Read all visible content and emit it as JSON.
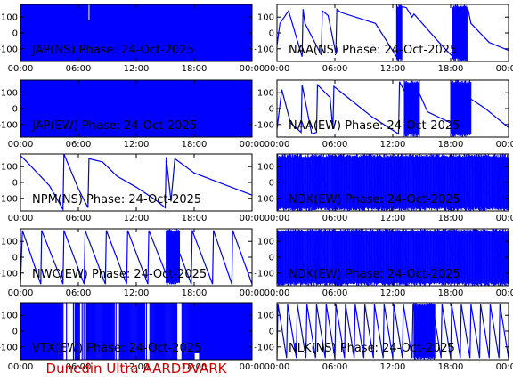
{
  "footer": "Dunedin Ultra AARDDVARK",
  "colors": {
    "trace": "#0000ff",
    "axes": "#000000",
    "footer": "#cc0000",
    "background": "#ffffff"
  },
  "chart_data": [
    {
      "type": "line",
      "title": "JAP(NS) Phase: 24-Oct-2025",
      "xlim": [
        0,
        24
      ],
      "ylim": [
        -180,
        180
      ],
      "xticks": [
        "00:00",
        "06:00",
        "12:00",
        "18:00",
        "00:00"
      ],
      "yticks": [
        100,
        0,
        -100
      ],
      "pattern": "noise",
      "series": [
        {
          "x": [
            0,
            24
          ],
          "y": [
            -180,
            180
          ]
        }
      ]
    },
    {
      "type": "line",
      "title": "NAA(NS) Phase: 24-Oct-2025",
      "xlim": [
        0,
        24
      ],
      "ylim": [
        -180,
        180
      ],
      "xticks": [
        "00:00",
        "06:00",
        "12:00",
        "18:00",
        "00:00"
      ],
      "yticks": [
        100,
        0,
        -100
      ],
      "pattern": "ramps",
      "noise_spans": [
        [
          12.4,
          13.0
        ],
        [
          18.2,
          19.7
        ]
      ],
      "series": [
        {
          "x": [
            0,
            0.3,
            1.2,
            2.6,
            2.7,
            2.9,
            4.6,
            4.7,
            5.3,
            6.1,
            6.2,
            6.6,
            10.2,
            12.6,
            12.7,
            13.4,
            14.0,
            14.2,
            16.8,
            18.2,
            19.8,
            20.1,
            22.0,
            24.0
          ],
          "y": [
            -80,
            60,
            140,
            -150,
            150,
            60,
            -140,
            140,
            110,
            -130,
            150,
            130,
            60,
            -170,
            170,
            160,
            100,
            120,
            -60,
            -150,
            150,
            60,
            -60,
            -110
          ]
        }
      ]
    },
    {
      "type": "line",
      "title": "JAP(EW) Phase: 24-Oct-2025",
      "xlim": [
        0,
        24
      ],
      "ylim": [
        -180,
        180
      ],
      "xticks": [
        "00:00",
        "06:00",
        "12:00",
        "18:00",
        "00:00"
      ],
      "yticks": [
        100,
        0,
        -100
      ],
      "pattern": "noise",
      "series": [
        {
          "x": [
            0,
            24
          ],
          "y": [
            -180,
            180
          ]
        }
      ]
    },
    {
      "type": "line",
      "title": "NAA(EW) Phase: 24-Oct-2025",
      "xlim": [
        0,
        24
      ],
      "ylim": [
        -180,
        180
      ],
      "xticks": [
        "00:00",
        "06:00",
        "12:00",
        "18:00",
        "00:00"
      ],
      "yticks": [
        100,
        0,
        -100
      ],
      "pattern": "ramps",
      "noise_spans": [
        [
          13.2,
          14.8
        ],
        [
          18.0,
          20.1
        ]
      ],
      "series": [
        {
          "x": [
            0,
            0.5,
            1.4,
            2.5,
            2.6,
            3.6,
            4.1,
            4.2,
            5.5,
            5.8,
            5.9,
            6.3,
            9.8,
            12.6,
            12.7,
            13.2,
            14.8,
            15.6,
            18.0,
            20.1,
            21.6,
            24.0
          ],
          "y": [
            -130,
            120,
            -90,
            -150,
            150,
            -160,
            -150,
            150,
            70,
            -130,
            140,
            120,
            -50,
            -160,
            170,
            110,
            90,
            -20,
            -90,
            60,
            0,
            -120
          ]
        }
      ]
    },
    {
      "type": "line",
      "title": "NPM(NS) Phase: 24-Oct-2025",
      "xlim": [
        0,
        24
      ],
      "ylim": [
        -180,
        180
      ],
      "xticks": [
        "00:00",
        "06:00",
        "12:00",
        "18:00",
        "00:00"
      ],
      "yticks": [
        100,
        0,
        -100
      ],
      "pattern": "ramps",
      "noise_spans": [],
      "series": [
        {
          "x": [
            0,
            0.5,
            3.0,
            4.4,
            4.5,
            6.0,
            7.0,
            7.1,
            8.5,
            10.0,
            12.0,
            14.0,
            15.0,
            15.1,
            15.6,
            16.0,
            18.0,
            21.0,
            24.0
          ],
          "y": [
            170,
            140,
            -20,
            -170,
            180,
            -40,
            -160,
            150,
            130,
            40,
            -30,
            -110,
            -160,
            160,
            -120,
            150,
            60,
            -10,
            -80
          ]
        }
      ]
    },
    {
      "type": "line",
      "title": "NDK(EW) Phase: 24-Oct-2025",
      "xlim": [
        0,
        24
      ],
      "ylim": [
        -180,
        180
      ],
      "xticks": [
        "00:00",
        "06:00",
        "12:00",
        "18:00",
        "00:00"
      ],
      "yticks": [
        100,
        0,
        -100
      ],
      "pattern": "noise_ramps",
      "series": [
        {
          "x": [
            0,
            24
          ],
          "y": [
            -180,
            180
          ]
        }
      ]
    },
    {
      "type": "line",
      "title": "NWC(EW) Phase: 24-Oct-2025",
      "xlim": [
        0,
        24
      ],
      "ylim": [
        -180,
        180
      ],
      "xticks": [
        "00:00",
        "06:00",
        "12:00",
        "18:00",
        "00:00"
      ],
      "yticks": [
        100,
        0,
        -100
      ],
      "pattern": "sawtooth",
      "noise_spans": [
        [
          15.1,
          16.5
        ]
      ],
      "series": [
        {
          "x": [
            0,
            0.2,
            2.1,
            2.2,
            4.4,
            4.5,
            6.6,
            6.7,
            8.8,
            8.9,
            11.0,
            11.1,
            13.2,
            13.3,
            15.5,
            15.6,
            17.7,
            17.8,
            19.9,
            20.0,
            21.9,
            22.0,
            24.0
          ],
          "y": [
            -170,
            170,
            -170,
            170,
            -170,
            170,
            -170,
            170,
            -170,
            170,
            -170,
            170,
            -170,
            170,
            -170,
            170,
            -170,
            170,
            -170,
            170,
            -170,
            170,
            -170
          ]
        }
      ]
    },
    {
      "type": "line",
      "title": "NDK(EW) Phase: 24-Oct-2025",
      "xlim": [
        0,
        24
      ],
      "ylim": [
        -180,
        180
      ],
      "xticks": [
        "00:00",
        "06:00",
        "12:00",
        "18:00",
        "00:00"
      ],
      "yticks": [
        100,
        0,
        -100
      ],
      "pattern": "noise_ramps",
      "series": [
        {
          "x": [
            0,
            24
          ],
          "y": [
            -180,
            180
          ]
        }
      ]
    },
    {
      "type": "line",
      "title": "VTX(EW) Phase: 24-Oct-2025",
      "xlim": [
        0,
        24
      ],
      "ylim": [
        -180,
        180
      ],
      "xticks": [
        "00:00",
        "06:00",
        "12:00",
        "18:00",
        "00:00"
      ],
      "yticks": [
        100,
        0,
        -100
      ],
      "pattern": "noise_gaps",
      "series": [
        {
          "x": [
            0,
            24
          ],
          "y": [
            -180,
            180
          ]
        }
      ]
    },
    {
      "type": "line",
      "title": "NLK(NS) Phase: 24-Oct-2025",
      "xlim": [
        0,
        24
      ],
      "ylim": [
        -180,
        180
      ],
      "xticks": [
        "00:00",
        "06:00",
        "12:00",
        "18:00",
        "00:00"
      ],
      "yticks": [
        100,
        0,
        -100
      ],
      "pattern": "sawtooth",
      "noise_spans": [
        [
          14.2,
          16.4
        ]
      ],
      "series": [
        {
          "x": [
            0,
            0.1,
            1.0,
            1.1,
            2.0,
            2.1,
            3.0,
            3.1,
            4.0,
            4.1,
            5.0,
            5.1,
            6.0,
            6.1,
            7.0,
            7.1,
            8.0,
            8.1,
            9.0,
            9.1,
            10.0,
            10.1,
            11.0,
            11.1,
            12.0,
            12.1,
            13.0,
            13.1,
            14.0,
            14.1,
            15.0,
            15.1,
            16.0,
            16.1,
            17.0,
            17.1,
            18.0,
            18.1,
            19.0,
            19.1,
            20.0,
            20.1,
            21.0,
            21.1,
            22.0,
            22.1,
            23.0,
            23.1,
            24.0
          ],
          "y": [
            -170,
            170,
            -170,
            170,
            -170,
            170,
            -170,
            170,
            -170,
            170,
            -170,
            170,
            -170,
            170,
            -170,
            170,
            -170,
            170,
            -170,
            170,
            -170,
            170,
            -170,
            170,
            -170,
            170,
            -170,
            170,
            -170,
            170,
            -170,
            170,
            -170,
            170,
            -170,
            170,
            -170,
            170,
            -170,
            170,
            -170,
            170,
            -170,
            170,
            -170,
            170,
            -170,
            170,
            -170
          ]
        }
      ]
    }
  ]
}
